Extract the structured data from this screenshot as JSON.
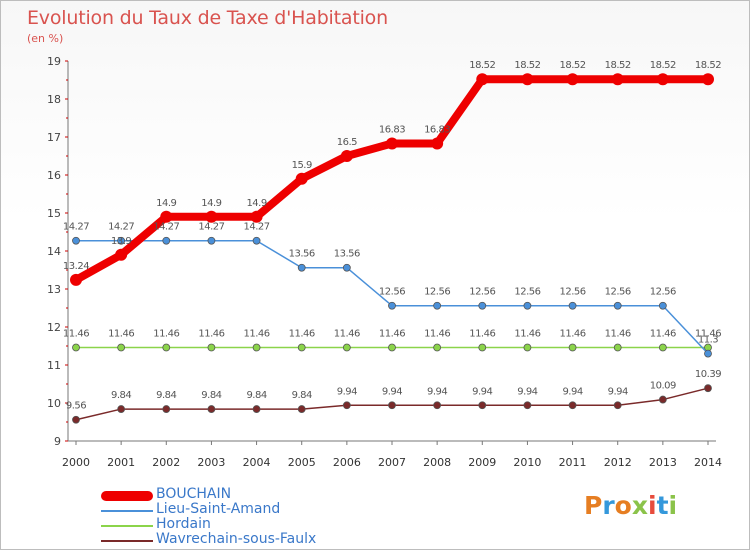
{
  "title": "Evolution du Taux de Taxe d'Habitation",
  "unit_label": "(en %)",
  "logo_text": "Proxiti",
  "logo_colors": [
    "#e67e22",
    "#3498db",
    "#e67e22",
    "#8bc34a",
    "#e74c3c",
    "#3498db",
    "#8bc34a"
  ],
  "chart_data": {
    "type": "line",
    "title": "Evolution du Taux de Taxe d'Habitation",
    "ylabel": "(en %)",
    "xlabel": "",
    "x": [
      "2000",
      "2001",
      "2002",
      "2003",
      "2004",
      "2005",
      "2006",
      "2007",
      "2008",
      "2009",
      "2010",
      "2011",
      "2012",
      "2013",
      "2014"
    ],
    "ylim": [
      9,
      19
    ],
    "yticks": [
      "9",
      "10",
      "11",
      "12",
      "13",
      "14",
      "15",
      "16",
      "17",
      "18",
      "19"
    ],
    "grid": false,
    "legend_position": "bottom-left",
    "series": [
      {
        "name": "BOUCHAIN",
        "color": "#ee0000",
        "values": [
          13.24,
          13.9,
          14.9,
          14.9,
          14.9,
          15.9,
          16.5,
          16.83,
          16.83,
          18.52,
          18.52,
          18.52,
          18.52,
          18.52,
          18.52
        ],
        "labels": [
          "13.24",
          "13.9",
          "14.9",
          "14.9",
          "14.9",
          "15.9",
          "16.5",
          "16.83",
          "16.83",
          "18.52",
          "18.52",
          "18.52",
          "18.52",
          "18.52",
          "18.52"
        ]
      },
      {
        "name": "Lieu-Saint-Amand",
        "color": "#4a90d9",
        "values": [
          14.27,
          14.27,
          14.27,
          14.27,
          14.27,
          13.56,
          13.56,
          12.56,
          12.56,
          12.56,
          12.56,
          12.56,
          12.56,
          12.56,
          11.3
        ],
        "labels": [
          "14.27",
          "14.27",
          "14.27",
          "14.27",
          "14.27",
          "13.56",
          "13.56",
          "12.56",
          "12.56",
          "12.56",
          "12.56",
          "12.56",
          "12.56",
          "12.56",
          "11.3"
        ]
      },
      {
        "name": "Hordain",
        "color": "#8bd44a",
        "values": [
          11.46,
          11.46,
          11.46,
          11.46,
          11.46,
          11.46,
          11.46,
          11.46,
          11.46,
          11.46,
          11.46,
          11.46,
          11.46,
          11.46,
          11.46
        ],
        "labels": [
          "11.46",
          "11.46",
          "11.46",
          "11.46",
          "11.46",
          "11.46",
          "11.46",
          "11.46",
          "11.46",
          "11.46",
          "11.46",
          "11.46",
          "11.46",
          "11.46",
          "11.46"
        ]
      },
      {
        "name": "Wavrechain-sous-Faulx",
        "color": "#7a2a2a",
        "values": [
          9.56,
          9.84,
          9.84,
          9.84,
          9.84,
          9.84,
          9.94,
          9.94,
          9.94,
          9.94,
          9.94,
          9.94,
          9.94,
          10.09,
          10.39
        ],
        "labels": [
          "9.56",
          "9.84",
          "9.84",
          "9.84",
          "9.84",
          "9.84",
          "9.94",
          "9.94",
          "9.94",
          "9.94",
          "9.94",
          "9.94",
          "9.94",
          "10.09",
          "10.39"
        ]
      }
    ]
  }
}
